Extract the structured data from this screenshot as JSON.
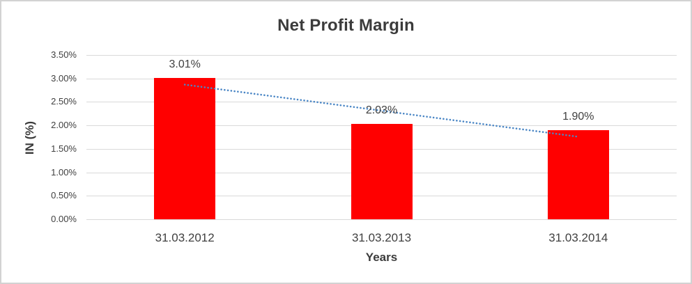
{
  "chart_data": {
    "type": "bar",
    "title": "Net Profit Margin",
    "categories": [
      "31.03.2012",
      "31.03.2013",
      "31.03.2014"
    ],
    "values": [
      3.01,
      2.03,
      1.9
    ],
    "data_labels": [
      "3.01%",
      "2.03%",
      "1.90%"
    ],
    "xlabel": "Years",
    "ylabel": "IN (%)",
    "ylim": [
      0,
      3.5
    ],
    "ytick_step": 0.5,
    "ytick_labels": [
      "0.00%",
      "0.50%",
      "1.00%",
      "1.50%",
      "2.00%",
      "2.50%",
      "3.00%",
      "3.50%"
    ],
    "legend": "none",
    "grid": "horizontal",
    "trendline": {
      "type": "linear",
      "style": "dotted"
    },
    "colors": {
      "bar": "#ff0000",
      "trendline": "#4a86c5",
      "gridline": "#d9d9d9",
      "text": "#404040",
      "title_text": "#3b3b3b",
      "border": "#d2d2d2",
      "background": "#ffffff"
    }
  }
}
